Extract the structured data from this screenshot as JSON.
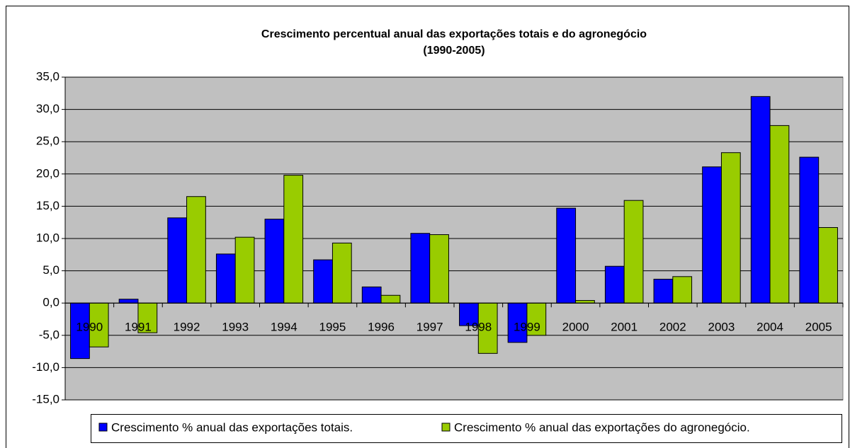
{
  "chart_data": {
    "type": "bar",
    "title": [
      "Crescimento percentual anual das exportações  totais e do agronegócio",
      "(1990-2005)"
    ],
    "categories": [
      "1990",
      "1991",
      "1992",
      "1993",
      "1994",
      "1995",
      "1996",
      "1997",
      "1998",
      "1999",
      "2000",
      "2001",
      "2002",
      "2003",
      "2004",
      "2005"
    ],
    "series": [
      {
        "name": "Crescimento % anual das exportações totais.",
        "color": "#0000ff",
        "values": [
          -8.6,
          0.6,
          13.2,
          7.6,
          13.0,
          6.7,
          2.5,
          10.8,
          -3.5,
          -6.1,
          14.7,
          5.7,
          3.7,
          21.1,
          32.0,
          22.6
        ]
      },
      {
        "name": "Crescimento % anual das exportações do agronegócio.",
        "color": "#99cc00",
        "values": [
          -6.8,
          -4.6,
          16.5,
          10.2,
          19.8,
          9.3,
          1.2,
          10.6,
          -7.8,
          -5.0,
          0.4,
          15.9,
          4.1,
          23.3,
          27.5,
          11.7
        ]
      }
    ],
    "ylim": [
      -15,
      35
    ],
    "yticks": [
      {
        "value": -15,
        "label": "-15,0"
      },
      {
        "value": -10,
        "label": "-10,0"
      },
      {
        "value": -5,
        "label": "-5,0"
      },
      {
        "value": 0,
        "label": "0,0"
      },
      {
        "value": 5,
        "label": "5,0"
      },
      {
        "value": 10,
        "label": "10,0"
      },
      {
        "value": 15,
        "label": "15,0"
      },
      {
        "value": 20,
        "label": "20,0"
      },
      {
        "value": 25,
        "label": "25,0"
      },
      {
        "value": 30,
        "label": "30,0"
      },
      {
        "value": 35,
        "label": "35,0"
      }
    ],
    "grid": true,
    "legend": "bottom"
  }
}
